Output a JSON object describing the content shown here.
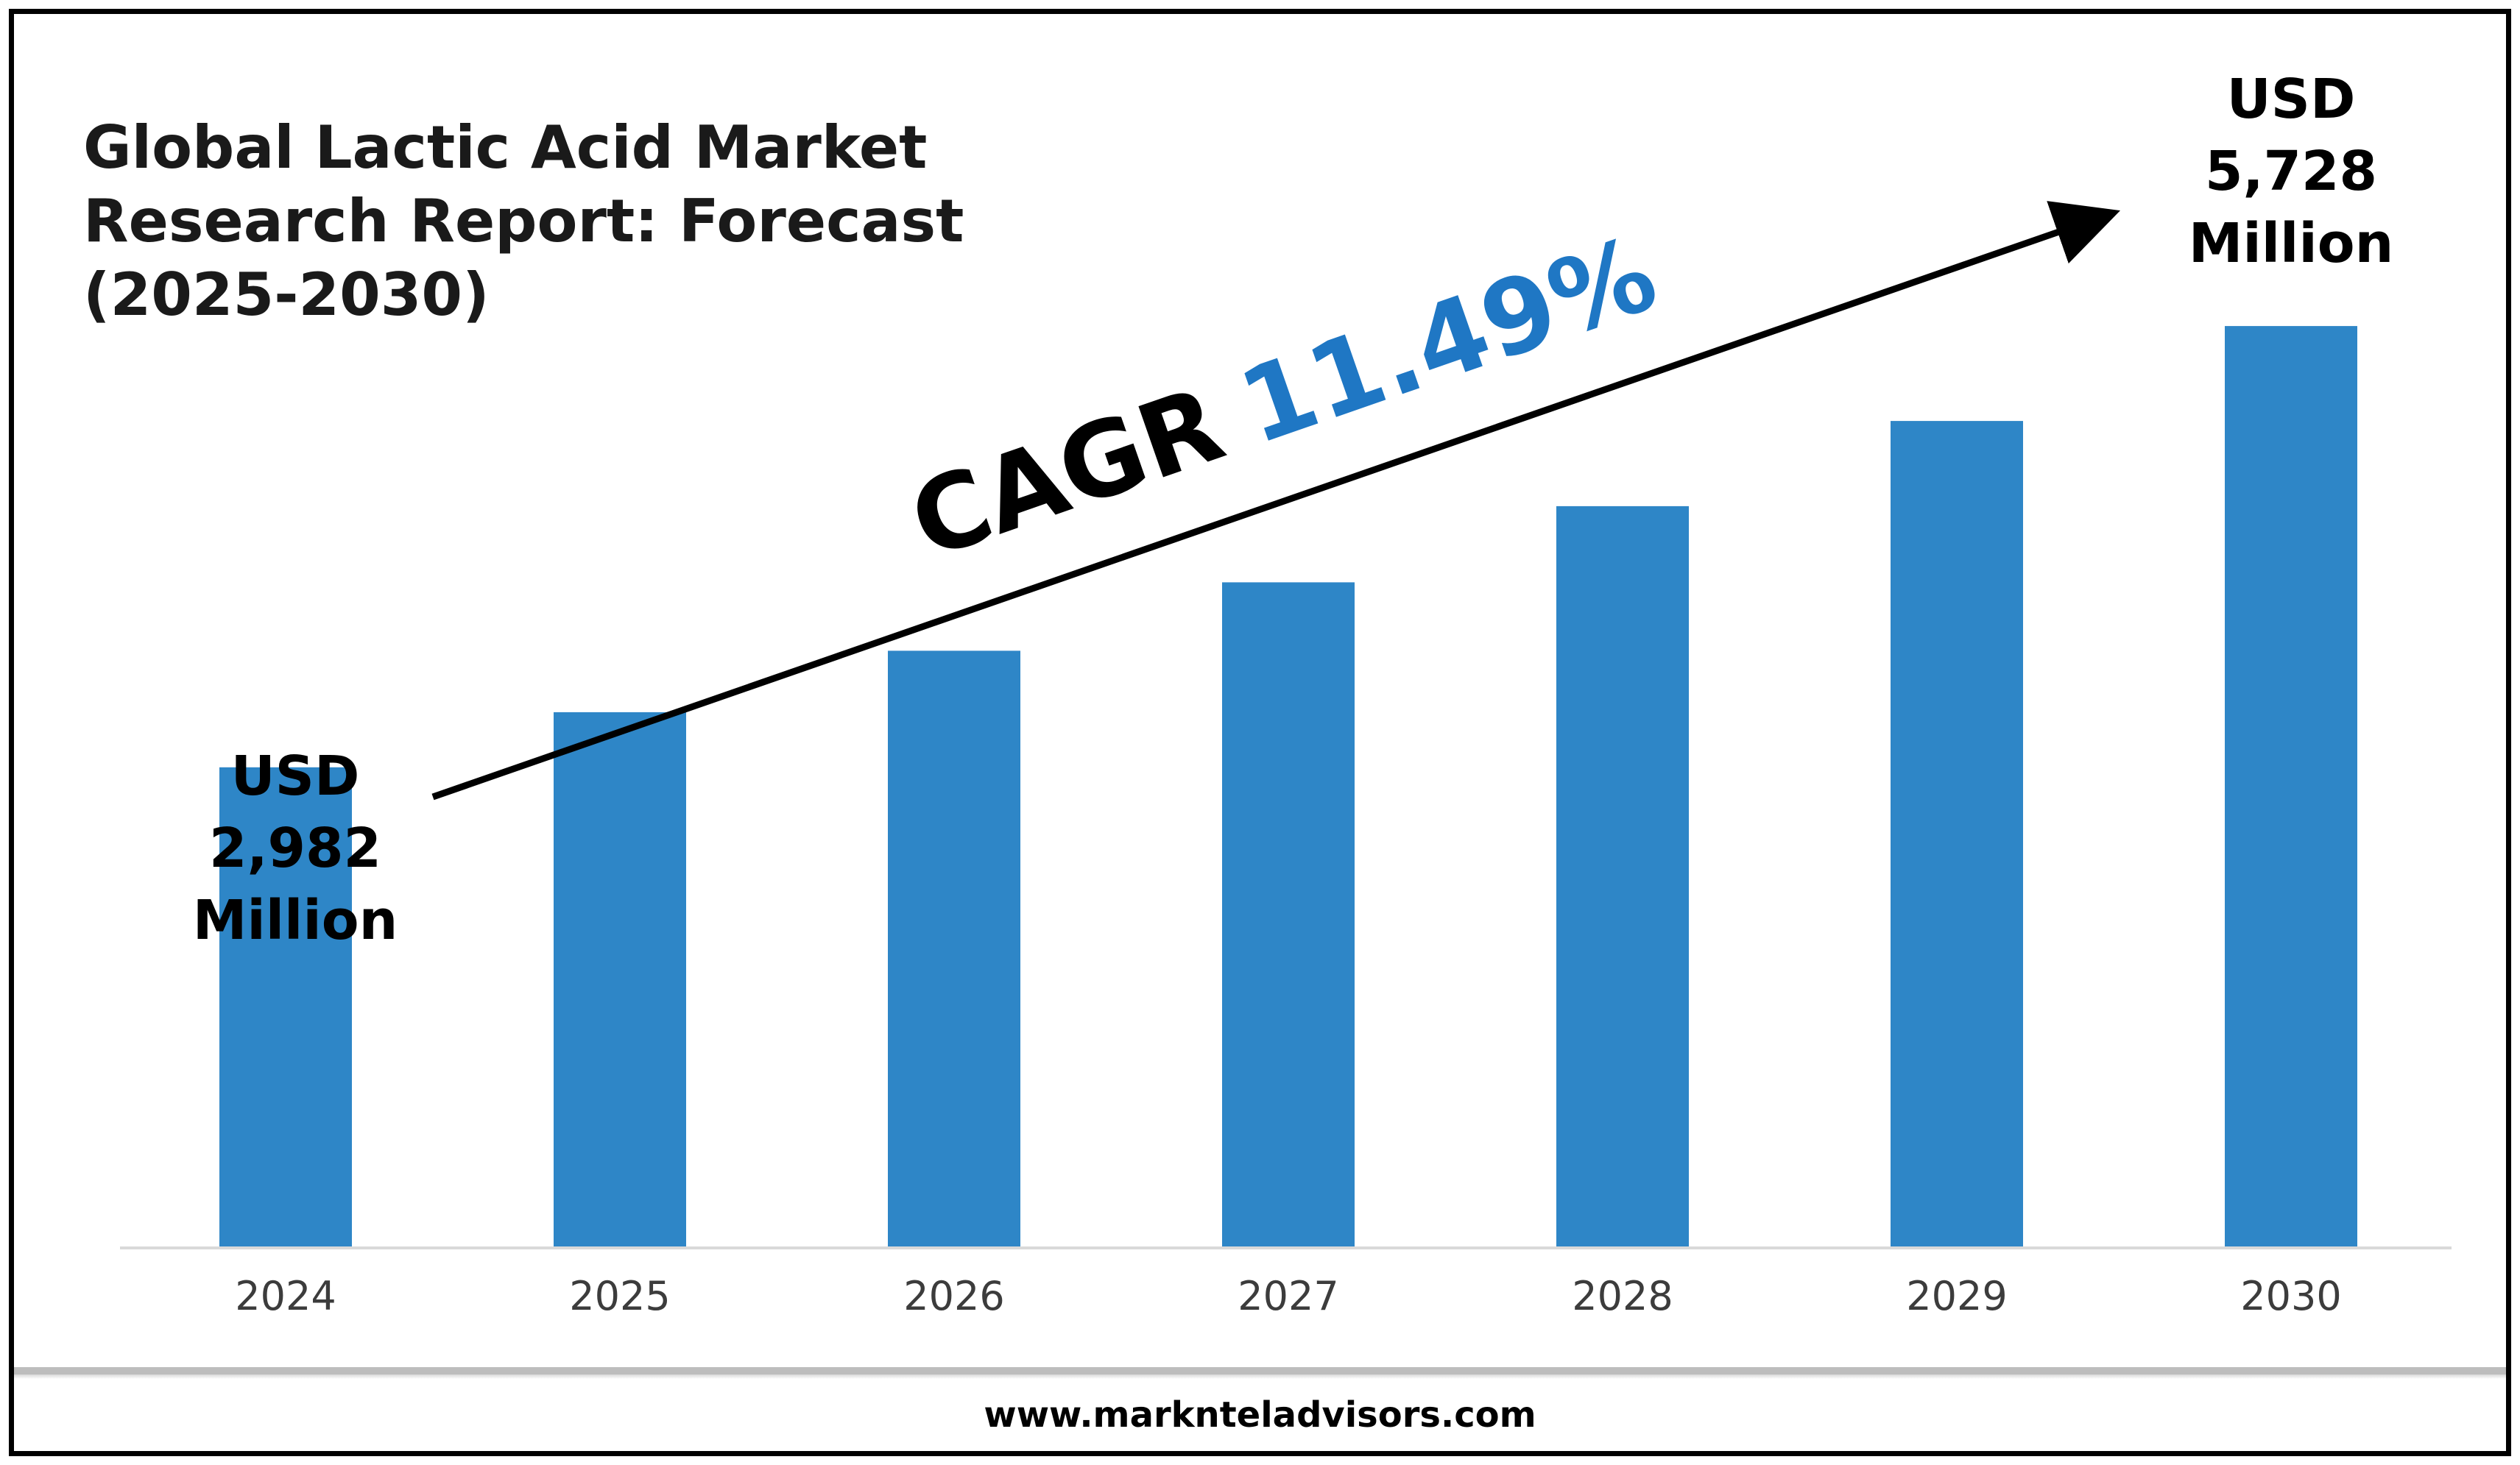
{
  "title": {
    "line1": "Global Lactic Acid Market",
    "line2": "Research Report: Forecast",
    "line3": "(2025-2030)"
  },
  "cagr": {
    "label": "CAGR",
    "value": "11.49%",
    "label_color": "#000000",
    "value_color": "#1f77c4"
  },
  "start_callout": {
    "line1": "USD",
    "line2": "2,982",
    "line3": "Million"
  },
  "end_callout": {
    "line1": "USD",
    "line2": "5,728",
    "line3": "Million"
  },
  "footer": {
    "website": "www.marknteladvisors.com"
  },
  "colors": {
    "bar": "#2e86c7",
    "axis": "#d9d9d9",
    "frame": "#000000"
  },
  "chart_data": {
    "type": "bar",
    "title": "Global Lactic Acid Market Research Report: Forecast (2025-2030)",
    "categories": [
      "2024",
      "2025",
      "2026",
      "2027",
      "2028",
      "2029",
      "2030"
    ],
    "values": [
      2982,
      3325,
      3707,
      4133,
      4607,
      5137,
      5728
    ],
    "unit": "USD Million",
    "ylim": [
      0,
      6200
    ],
    "grid": false,
    "annotations": [
      {
        "category": "2024",
        "text": "USD 2,982 Million"
      },
      {
        "category": "2030",
        "text": "USD 5,728 Million"
      },
      {
        "text": "CAGR 11.49%"
      }
    ]
  }
}
